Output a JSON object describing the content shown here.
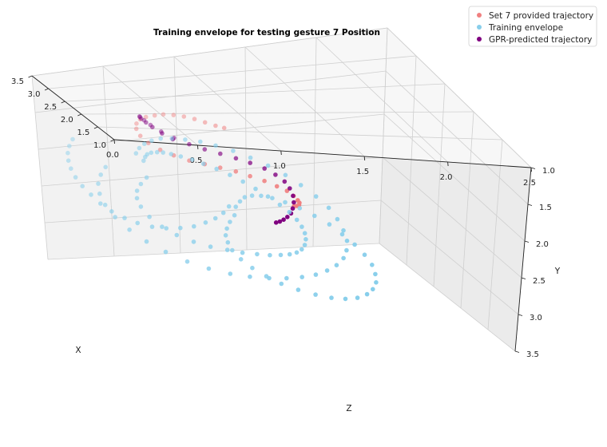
{
  "chart_data": {
    "type": "scatter",
    "title": "Training envelope for testing gesture 7 Position",
    "xlabel": "X",
    "ylabel": "Y",
    "zlabel": "Z",
    "xlim": [
      1.0,
      3.5
    ],
    "ylim": [
      1.0,
      3.5
    ],
    "zlim": [
      0.0,
      2.5
    ],
    "x_ticks": [
      "1.0",
      "1.5",
      "2.0",
      "2.5",
      "3.0",
      "3.5"
    ],
    "y_ticks": [
      "1.0",
      "1.5",
      "2.0",
      "2.5",
      "3.0",
      "3.5"
    ],
    "z_ticks": [
      "0.0",
      "0.5",
      "1.0",
      "1.5",
      "2.0",
      "2.5"
    ],
    "grid": true,
    "legend_position": "top-right",
    "legend": [
      {
        "label": "Set 7 provided trajectory",
        "color": "#f08080"
      },
      {
        "label": "Training envelope",
        "color": "#87ceeb"
      },
      {
        "label": "GPR-predicted trajectory",
        "color": "#800080"
      }
    ],
    "series": [
      {
        "name": "Set 7 provided trajectory",
        "color": "#f08080",
        "points": [
          [
            2.3,
            1.3,
            0.98
          ],
          [
            2.32,
            1.28,
            0.93
          ],
          [
            2.35,
            1.25,
            0.87
          ],
          [
            2.38,
            1.22,
            0.81
          ],
          [
            2.41,
            1.2,
            0.75
          ],
          [
            2.44,
            1.19,
            0.69
          ],
          [
            2.47,
            1.19,
            0.63
          ],
          [
            2.5,
            1.21,
            0.58
          ],
          [
            2.54,
            1.24,
            0.53
          ],
          [
            2.58,
            1.28,
            0.5
          ],
          [
            2.61,
            1.34,
            0.48
          ],
          [
            2.63,
            1.41,
            0.48
          ],
          [
            2.62,
            1.49,
            0.5
          ],
          [
            2.58,
            1.56,
            0.54
          ],
          [
            2.52,
            1.62,
            0.6
          ],
          [
            2.45,
            1.66,
            0.67
          ],
          [
            2.37,
            1.69,
            0.75
          ],
          [
            2.29,
            1.7,
            0.83
          ],
          [
            2.21,
            1.71,
            0.91
          ],
          [
            2.13,
            1.72,
            0.99
          ],
          [
            2.05,
            1.74,
            1.06
          ],
          [
            1.97,
            1.76,
            1.13
          ],
          [
            1.9,
            1.79,
            1.19
          ],
          [
            1.85,
            1.82,
            1.24
          ],
          [
            1.81,
            1.86,
            1.27
          ],
          [
            1.79,
            1.9,
            1.29
          ],
          [
            1.79,
            1.93,
            1.3
          ],
          [
            1.8,
            1.96,
            1.3
          ],
          [
            1.82,
            1.98,
            1.29
          ],
          [
            1.85,
            2.0,
            1.28
          ]
        ]
      },
      {
        "name": "GPR-predicted trajectory",
        "color": "#800080",
        "points": [
          [
            2.4,
            1.45,
            0.66
          ],
          [
            2.43,
            1.39,
            0.6
          ],
          [
            2.47,
            1.33,
            0.55
          ],
          [
            2.51,
            1.29,
            0.52
          ],
          [
            2.55,
            1.26,
            0.5
          ],
          [
            2.59,
            1.25,
            0.5
          ],
          [
            2.62,
            1.27,
            0.51
          ],
          [
            2.64,
            1.32,
            0.54
          ],
          [
            2.64,
            1.38,
            0.58
          ],
          [
            2.61,
            1.45,
            0.64
          ],
          [
            2.56,
            1.51,
            0.71
          ],
          [
            2.49,
            1.56,
            0.79
          ],
          [
            2.41,
            1.59,
            0.87
          ],
          [
            2.33,
            1.61,
            0.95
          ],
          [
            2.25,
            1.63,
            1.03
          ],
          [
            2.17,
            1.65,
            1.1
          ],
          [
            2.09,
            1.68,
            1.17
          ],
          [
            2.02,
            1.72,
            1.22
          ],
          [
            1.96,
            1.77,
            1.26
          ],
          [
            1.92,
            1.83,
            1.28
          ],
          [
            1.89,
            1.9,
            1.29
          ],
          [
            1.88,
            1.97,
            1.29
          ],
          [
            1.88,
            2.04,
            1.28
          ],
          [
            1.89,
            2.1,
            1.27
          ],
          [
            1.91,
            2.15,
            1.25
          ],
          [
            1.93,
            2.19,
            1.23
          ],
          [
            1.95,
            2.22,
            1.21
          ],
          [
            1.97,
            2.24,
            1.19
          ]
        ]
      },
      {
        "name": "Training envelope",
        "color": "#87ceeb",
        "points": [
          [
            2.75,
            2.05,
            0.55
          ],
          [
            2.8,
            2.15,
            0.52
          ],
          [
            2.84,
            2.25,
            0.5
          ],
          [
            2.86,
            2.35,
            0.5
          ],
          [
            2.85,
            2.45,
            0.52
          ],
          [
            2.8,
            2.55,
            0.56
          ],
          [
            2.72,
            2.63,
            0.62
          ],
          [
            2.62,
            2.68,
            0.69
          ],
          [
            2.5,
            2.7,
            0.77
          ],
          [
            2.38,
            2.7,
            0.85
          ],
          [
            2.26,
            2.68,
            0.93
          ],
          [
            2.15,
            2.66,
            1.0
          ],
          [
            2.05,
            2.63,
            1.07
          ],
          [
            1.96,
            2.6,
            1.13
          ],
          [
            1.88,
            2.56,
            1.18
          ],
          [
            1.81,
            2.52,
            1.22
          ],
          [
            1.75,
            2.47,
            1.25
          ],
          [
            1.7,
            2.41,
            1.27
          ],
          [
            1.66,
            2.34,
            1.28
          ],
          [
            1.63,
            2.26,
            1.28
          ],
          [
            1.61,
            2.18,
            1.27
          ],
          [
            1.6,
            2.1,
            1.25
          ],
          [
            1.6,
            2.02,
            1.22
          ],
          [
            1.62,
            1.94,
            1.18
          ],
          [
            1.65,
            1.87,
            1.13
          ],
          [
            1.7,
            1.8,
            1.07
          ],
          [
            1.76,
            1.74,
            1.01
          ],
          [
            1.83,
            1.69,
            0.95
          ],
          [
            1.91,
            1.65,
            0.89
          ],
          [
            2.0,
            1.62,
            0.83
          ],
          [
            2.09,
            1.6,
            0.77
          ],
          [
            2.18,
            1.59,
            0.72
          ],
          [
            2.27,
            1.59,
            0.67
          ],
          [
            2.36,
            1.6,
            0.63
          ],
          [
            2.45,
            1.62,
            0.6
          ],
          [
            2.53,
            1.65,
            0.58
          ],
          [
            2.61,
            1.69,
            0.56
          ],
          [
            2.68,
            1.74,
            0.55
          ],
          [
            2.74,
            1.8,
            0.55
          ],
          [
            2.79,
            1.87,
            0.55
          ],
          [
            3.05,
            2.05,
            0.35
          ],
          [
            3.12,
            2.18,
            0.33
          ],
          [
            3.17,
            2.32,
            0.32
          ],
          [
            3.19,
            2.46,
            0.33
          ],
          [
            3.18,
            2.6,
            0.36
          ],
          [
            3.13,
            2.73,
            0.41
          ],
          [
            3.04,
            2.84,
            0.48
          ],
          [
            2.92,
            2.92,
            0.56
          ],
          [
            2.78,
            2.97,
            0.65
          ],
          [
            2.62,
            3.0,
            0.75
          ],
          [
            2.46,
            3.0,
            0.85
          ],
          [
            2.3,
            2.98,
            0.95
          ],
          [
            2.15,
            2.94,
            1.04
          ],
          [
            2.01,
            2.89,
            1.13
          ],
          [
            1.88,
            2.83,
            1.21
          ],
          [
            1.76,
            2.76,
            1.28
          ],
          [
            1.65,
            2.68,
            1.34
          ],
          [
            1.56,
            2.59,
            1.39
          ],
          [
            1.48,
            2.49,
            1.43
          ],
          [
            1.42,
            2.38,
            1.46
          ],
          [
            1.38,
            2.27,
            1.47
          ],
          [
            1.36,
            2.15,
            1.47
          ],
          [
            1.36,
            2.03,
            1.45
          ],
          [
            1.38,
            1.91,
            1.42
          ],
          [
            1.42,
            1.8,
            1.38
          ],
          [
            1.48,
            1.7,
            1.32
          ],
          [
            1.56,
            1.61,
            1.25
          ],
          [
            1.65,
            1.54,
            1.18
          ],
          [
            1.75,
            1.48,
            1.1
          ],
          [
            1.86,
            1.44,
            1.02
          ],
          [
            1.97,
            1.41,
            0.94
          ],
          [
            2.09,
            1.4,
            0.86
          ],
          [
            2.2,
            1.4,
            0.79
          ],
          [
            2.31,
            1.42,
            0.72
          ],
          [
            2.42,
            1.45,
            0.66
          ],
          [
            2.52,
            1.49,
            0.61
          ],
          [
            2.61,
            1.55,
            0.57
          ],
          [
            2.69,
            1.62,
            0.54
          ],
          [
            2.76,
            1.7,
            0.52
          ],
          [
            2.82,
            1.79,
            0.51
          ],
          [
            2.1,
            2.2,
            0.95
          ],
          [
            2.15,
            2.3,
            0.93
          ],
          [
            2.2,
            2.4,
            0.92
          ],
          [
            2.24,
            2.5,
            0.92
          ],
          [
            2.27,
            2.6,
            0.94
          ],
          [
            2.28,
            2.7,
            0.97
          ],
          [
            2.26,
            2.8,
            1.02
          ],
          [
            2.21,
            2.88,
            1.08
          ],
          [
            2.13,
            2.94,
            1.15
          ],
          [
            2.03,
            2.98,
            1.22
          ],
          [
            1.92,
            3.0,
            1.3
          ],
          [
            1.8,
            3.0,
            1.38
          ],
          [
            1.68,
            2.98,
            1.45
          ],
          [
            1.57,
            2.94,
            1.51
          ],
          [
            1.47,
            2.88,
            1.56
          ],
          [
            1.39,
            2.8,
            1.6
          ],
          [
            1.33,
            2.71,
            1.62
          ],
          [
            1.29,
            2.61,
            1.63
          ],
          [
            1.27,
            2.5,
            1.62
          ],
          [
            1.27,
            2.39,
            1.6
          ],
          [
            1.29,
            2.28,
            1.56
          ],
          [
            1.33,
            2.18,
            1.51
          ],
          [
            1.39,
            2.09,
            1.45
          ],
          [
            1.46,
            2.01,
            1.39
          ],
          [
            1.54,
            1.95,
            1.32
          ],
          [
            1.62,
            1.9,
            1.25
          ],
          [
            1.7,
            1.87,
            1.18
          ],
          [
            1.78,
            1.86,
            1.12
          ],
          [
            1.86,
            1.87,
            1.07
          ],
          [
            1.93,
            1.9,
            1.03
          ],
          [
            2.0,
            1.95,
            1.0
          ],
          [
            2.05,
            2.02,
            0.98
          ],
          [
            2.09,
            2.1,
            0.96
          ],
          [
            3.3,
            1.8,
            0.2
          ],
          [
            3.33,
            1.9,
            0.18
          ],
          [
            3.35,
            2.0,
            0.17
          ],
          [
            3.35,
            2.1,
            0.17
          ],
          [
            3.34,
            2.2,
            0.18
          ],
          [
            3.31,
            2.3,
            0.2
          ],
          [
            3.26,
            2.39,
            0.23
          ],
          [
            3.2,
            2.47,
            0.27
          ],
          [
            3.12,
            2.54,
            0.31
          ],
          [
            3.03,
            2.59,
            0.36
          ],
          [
            2.93,
            2.62,
            0.42
          ],
          [
            2.83,
            2.63,
            0.48
          ],
          [
            2.72,
            2.62,
            0.55
          ],
          [
            2.62,
            2.59,
            0.62
          ],
          [
            2.52,
            2.54,
            0.69
          ],
          [
            2.43,
            2.48,
            0.76
          ],
          [
            2.35,
            2.4,
            0.82
          ],
          [
            2.28,
            2.32,
            0.87
          ],
          [
            2.22,
            2.23,
            0.91
          ],
          [
            2.18,
            2.14,
            0.94
          ]
        ]
      }
    ]
  }
}
